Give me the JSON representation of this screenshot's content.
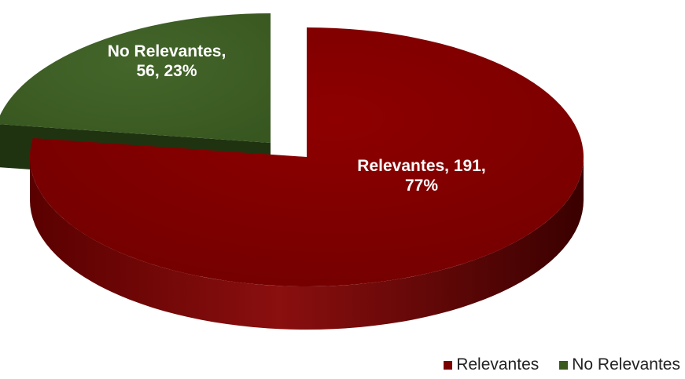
{
  "chart_data": {
    "type": "pie",
    "style": "3d-exploded",
    "categories": [
      "Relevantes",
      "No Relevantes"
    ],
    "values": [
      191,
      56
    ],
    "percentages": [
      77,
      23
    ],
    "data_labels": [
      "Relevantes, 191, 77%",
      "No Relevantes, 56, 23%"
    ],
    "colors": [
      "#7a0000",
      "#3a5a1e"
    ],
    "legend": {
      "position": "bottom-right",
      "entries": [
        "Relevantes",
        "No Relevantes"
      ]
    }
  }
}
